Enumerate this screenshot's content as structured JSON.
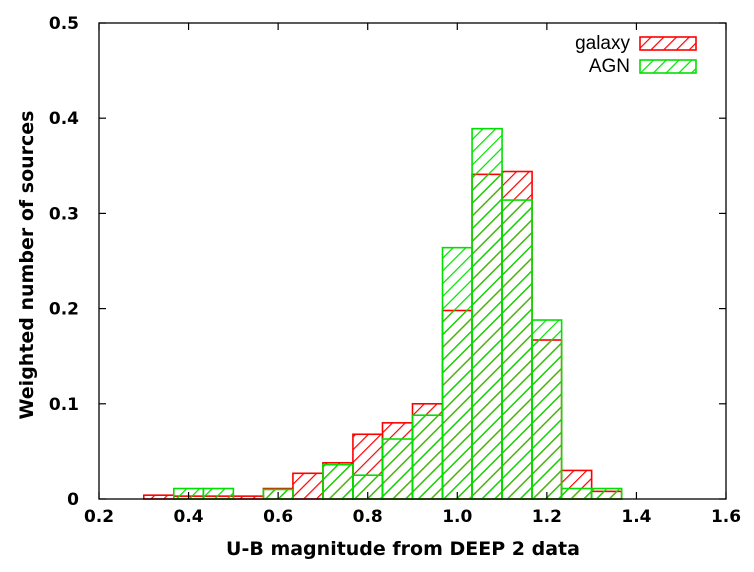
{
  "chart_data": {
    "type": "bar",
    "subtype": "overlaid-histogram",
    "title": "",
    "xlabel": "U-B magnitude from DEEP 2 data",
    "ylabel": "Weighted number of sources",
    "xlim": [
      0.2,
      1.6
    ],
    "ylim": [
      0,
      0.5
    ],
    "x_ticks": [
      0.2,
      0.4,
      0.6,
      0.8,
      1.0,
      1.2,
      1.4,
      1.6
    ],
    "y_ticks": [
      0,
      0.1,
      0.2,
      0.3,
      0.4,
      0.5
    ],
    "x_tick_labels": [
      "0.2",
      "0.4",
      "0.6",
      "0.8",
      "1.0",
      "1.2",
      "1.4",
      "1.6"
    ],
    "y_tick_labels": [
      "0",
      "0.1",
      "0.2",
      "0.3",
      "0.4",
      "0.5"
    ],
    "bin_width": 0.0667,
    "bin_edges": [
      0.3,
      0.367,
      0.433,
      0.5,
      0.567,
      0.633,
      0.7,
      0.767,
      0.833,
      0.9,
      0.967,
      1.033,
      1.1,
      1.167,
      1.233,
      1.3,
      1.367,
      1.433
    ],
    "legend_position": "top-right",
    "grid": false,
    "series": [
      {
        "name": "galaxy",
        "color": "#ff0000",
        "hatch": "diagonal",
        "values": [
          0.004,
          0.003,
          0.003,
          0.003,
          0.011,
          0.027,
          0.038,
          0.068,
          0.08,
          0.1,
          0.198,
          0.341,
          0.344,
          0.167,
          0.03,
          0.008,
          0.0
        ]
      },
      {
        "name": "AGN",
        "color": "#00e000",
        "hatch": "diagonal",
        "values": [
          0.0,
          0.011,
          0.011,
          0.0,
          0.01,
          0.0,
          0.036,
          0.025,
          0.063,
          0.088,
          0.264,
          0.389,
          0.314,
          0.188,
          0.011,
          0.011,
          0.0
        ]
      }
    ]
  }
}
